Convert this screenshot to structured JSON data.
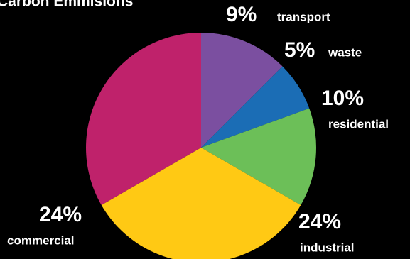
{
  "chart_data": {
    "type": "pie",
    "title": "Carbon Emmisions",
    "categories": [
      "transport",
      "waste",
      "residential",
      "industrial",
      "commercial"
    ],
    "values": [
      9,
      5,
      10,
      24,
      24
    ],
    "value_labels": [
      "9%",
      "5%",
      "10%",
      "24%",
      "24%"
    ],
    "colors": [
      "#7b4fa0",
      "#1b6db5",
      "#6cbf58",
      "#ffc914",
      "#bf226b"
    ]
  }
}
